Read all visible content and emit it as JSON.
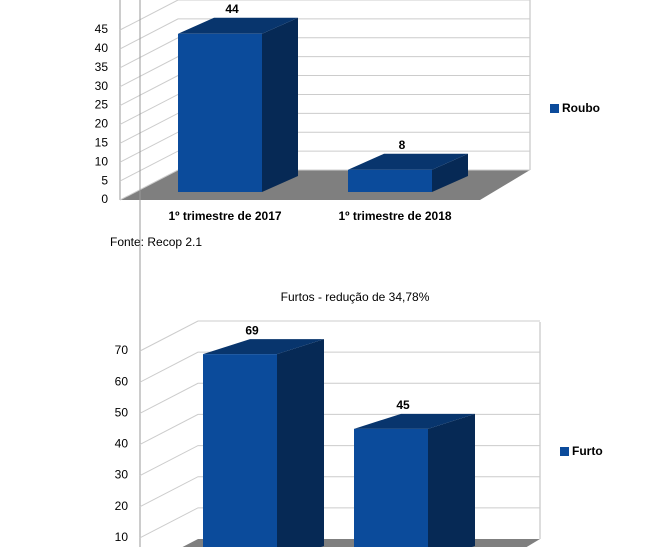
{
  "charts": [
    {
      "type": "bar3d",
      "categories": [
        "1º trimestre de 2017",
        "1º trimestre de 2018"
      ],
      "series": [
        {
          "name": "Roubo",
          "color": "#0b4b9b",
          "values": [
            44,
            8
          ]
        }
      ],
      "ylim": [
        0,
        45
      ],
      "yticks": [
        0,
        5,
        10,
        15,
        20,
        25,
        30,
        35,
        40,
        45
      ],
      "grid": true,
      "legend": "right",
      "source": "Fonte: Recop 2.1"
    },
    {
      "type": "bar3d",
      "title": "Furtos - redução de 34,78%",
      "series": [
        {
          "name": "Furto",
          "color": "#0b4b9b",
          "values": [
            69,
            45
          ]
        }
      ],
      "ylim": [
        0,
        70
      ],
      "yticks": [
        10,
        20,
        30,
        40,
        50,
        60,
        70
      ],
      "grid": true,
      "legend": "right"
    }
  ]
}
